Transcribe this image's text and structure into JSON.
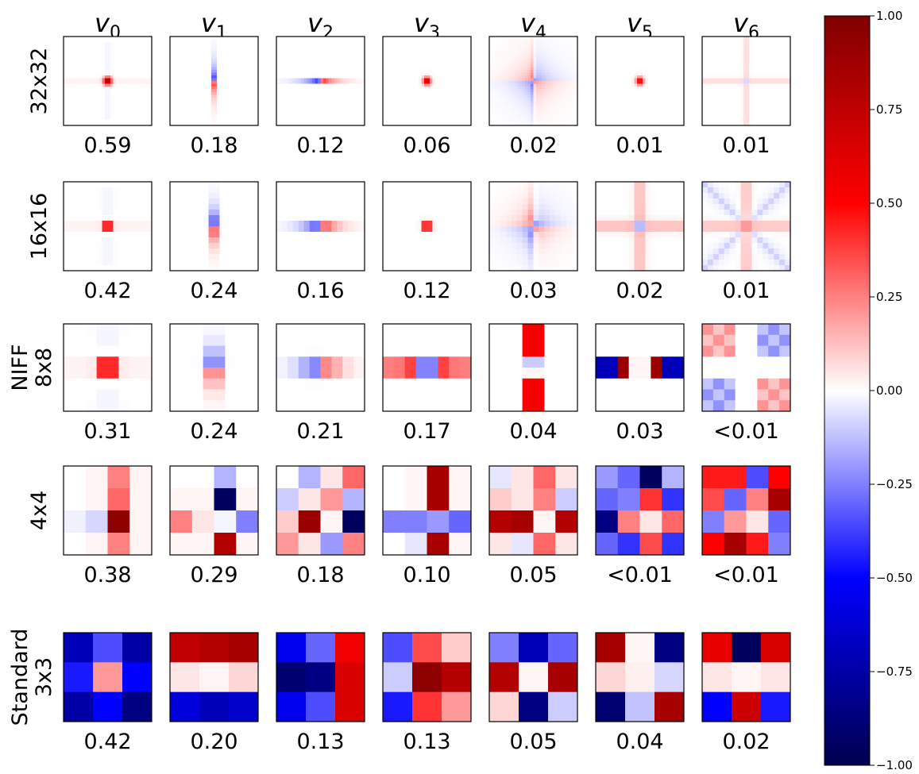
{
  "chart_data": {
    "type": "heatmap",
    "colormap": "seismic",
    "colorbar": {
      "range": [
        -1.0,
        1.0
      ],
      "ticks": [
        "1.00",
        "0.75",
        "0.50",
        "0.25",
        "0.00",
        "−0.25",
        "−0.50",
        "−0.75",
        "−1.00"
      ],
      "tick_values": [
        1.0,
        0.75,
        0.5,
        0.25,
        0.0,
        -0.25,
        -0.5,
        -0.75,
        -1.0
      ]
    },
    "column_labels": [
      {
        "base": "v",
        "sub": "0"
      },
      {
        "base": "v",
        "sub": "1"
      },
      {
        "base": "v",
        "sub": "2"
      },
      {
        "base": "v",
        "sub": "3"
      },
      {
        "base": "v",
        "sub": "4"
      },
      {
        "base": "v",
        "sub": "5"
      },
      {
        "base": "v",
        "sub": "6"
      }
    ],
    "rows": [
      {
        "label_lines": [
          "32x32"
        ],
        "size": 32,
        "values": [
          "0.59",
          "0.18",
          "0.12",
          "0.06",
          "0.02",
          "0.01",
          "0.01"
        ],
        "patterns": [
          {
            "kind": "dot",
            "amp": 0.95
          },
          {
            "kind": "vbar",
            "amp": 0.8
          },
          {
            "kind": "hbar",
            "amp": 0.8
          },
          {
            "kind": "quad",
            "amp": 0.7
          },
          {
            "kind": "diag",
            "amp": 0.45
          },
          {
            "kind": "quad",
            "amp": 0.6
          },
          {
            "kind": "cross",
            "amp": 0.3
          }
        ]
      },
      {
        "label_lines": [
          "16x16"
        ],
        "size": 16,
        "values": [
          "0.42",
          "0.24",
          "0.16",
          "0.12",
          "0.03",
          "0.02",
          "0.01"
        ],
        "patterns": [
          {
            "kind": "dot",
            "amp": 0.95
          },
          {
            "kind": "vbar",
            "amp": 0.9
          },
          {
            "kind": "hbar",
            "amp": 0.85
          },
          {
            "kind": "quad",
            "amp": 0.9
          },
          {
            "kind": "diag",
            "amp": 0.5
          },
          {
            "kind": "cross",
            "amp": 0.55
          },
          {
            "kind": "xcross",
            "amp": 0.45
          }
        ]
      },
      {
        "label_lines": [
          "NIFF",
          "8x8"
        ],
        "size": 8,
        "values": [
          "0.31",
          "0.24",
          "0.21",
          "0.17",
          "0.04",
          "0.03",
          "<0.01"
        ],
        "patterns": [
          {
            "kind": "dot",
            "amp": 0.95
          },
          {
            "kind": "vbar",
            "amp": 0.95
          },
          {
            "kind": "hbar",
            "amp": 0.95
          },
          {
            "kind": "hbar2",
            "amp": 0.9
          },
          {
            "kind": "vline",
            "amp": 0.85
          },
          {
            "kind": "hline",
            "amp": 0.85
          },
          {
            "kind": "checker",
            "amp": 0.55
          }
        ]
      },
      {
        "label_lines": [
          "4x4"
        ],
        "size": 4,
        "grid": [
          [
            [
              0.0,
              0.02,
              0.25,
              0.02
            ],
            [
              0.0,
              0.02,
              0.3,
              0.02
            ],
            [
              -0.03,
              -0.08,
              0.95,
              0.02
            ],
            [
              0.0,
              0.02,
              0.25,
              0.02
            ]
          ],
          [
            [
              0.0,
              0.0,
              -0.15,
              0.0
            ],
            [
              0.02,
              0.02,
              -0.95,
              0.02
            ],
            [
              0.25,
              0.05,
              -0.02,
              -0.25
            ],
            [
              0.02,
              0.02,
              0.8,
              0.02
            ]
          ],
          [
            [
              0.0,
              -0.15,
              0.05,
              0.3
            ],
            [
              -0.1,
              0.05,
              0.2,
              -0.15
            ],
            [
              0.1,
              0.9,
              0.02,
              -0.95
            ],
            [
              0.2,
              0.05,
              -0.2,
              0.25
            ]
          ],
          [
            [
              0.0,
              0.02,
              0.85,
              0.02
            ],
            [
              0.0,
              0.02,
              0.85,
              0.02
            ],
            [
              -0.25,
              -0.25,
              -0.2,
              -0.3
            ],
            [
              0.0,
              -0.05,
              0.85,
              0.02
            ]
          ],
          [
            [
              -0.05,
              0.05,
              0.3,
              0.05
            ],
            [
              0.1,
              0.05,
              0.25,
              -0.1
            ],
            [
              0.8,
              0.85,
              0.02,
              0.8
            ],
            [
              0.05,
              -0.05,
              0.3,
              0.05
            ]
          ],
          [
            [
              -0.2,
              -0.3,
              -0.95,
              -0.15
            ],
            [
              -0.3,
              -0.25,
              0.4,
              -0.4
            ],
            [
              -0.85,
              0.25,
              0.05,
              0.3
            ],
            [
              -0.3,
              -0.4,
              0.35,
              -0.4
            ]
          ],
          [
            [
              0.45,
              0.45,
              -0.35,
              0.5
            ],
            [
              0.35,
              -0.3,
              0.25,
              0.85
            ],
            [
              -0.25,
              0.2,
              0.05,
              -0.3
            ],
            [
              0.5,
              0.85,
              0.45,
              -0.25
            ]
          ]
        ],
        "values": [
          "0.38",
          "0.29",
          "0.18",
          "0.10",
          "0.05",
          "<0.01",
          "<0.01"
        ]
      },
      {
        "label_lines": [
          "Standard",
          "3x3"
        ],
        "size": 3,
        "grid": [
          [
            [
              -0.7,
              -0.35,
              -0.75
            ],
            [
              -0.45,
              0.2,
              -0.5
            ],
            [
              -0.75,
              -0.5,
              -0.85
            ]
          ],
          [
            [
              0.75,
              0.8,
              0.85
            ],
            [
              0.05,
              0.02,
              0.08
            ],
            [
              -0.6,
              -0.7,
              -0.65
            ]
          ],
          [
            [
              -0.55,
              -0.3,
              0.55
            ],
            [
              -0.9,
              -0.85,
              0.65
            ],
            [
              -0.55,
              -0.35,
              0.65
            ]
          ],
          [
            [
              -0.35,
              0.35,
              0.1
            ],
            [
              -0.1,
              0.95,
              0.8
            ],
            [
              -0.45,
              0.4,
              0.2
            ]
          ],
          [
            [
              -0.25,
              -0.7,
              -0.3
            ],
            [
              0.8,
              0.02,
              0.85
            ],
            [
              0.08,
              -0.85,
              -0.1
            ]
          ],
          [
            [
              0.85,
              0.02,
              -0.85
            ],
            [
              0.08,
              0.03,
              -0.08
            ],
            [
              -0.9,
              -0.12,
              0.85
            ]
          ],
          [
            [
              0.6,
              -0.95,
              0.65
            ],
            [
              0.05,
              0.02,
              0.05
            ],
            [
              -0.5,
              0.7,
              -0.45
            ]
          ]
        ],
        "values": [
          "0.42",
          "0.20",
          "0.13",
          "0.13",
          "0.05",
          "0.04",
          "0.02"
        ]
      }
    ]
  }
}
